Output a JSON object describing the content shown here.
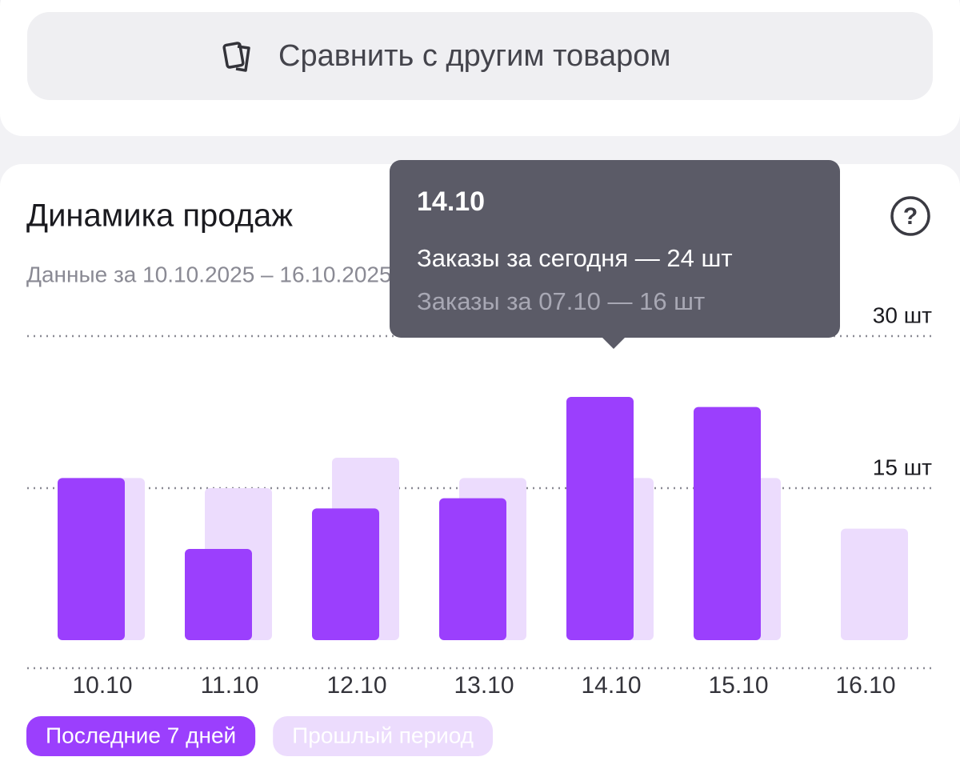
{
  "compare_button": {
    "label": "Сравнить с другим товаром"
  },
  "help_icon": "?",
  "chart_data": {
    "type": "bar",
    "title": "Динамика продаж",
    "subtitle": "Данные за 10.10.2025 – 16.10.2025",
    "categories": [
      "10.10",
      "11.10",
      "12.10",
      "13.10",
      "14.10",
      "15.10",
      "16.10"
    ],
    "series": [
      {
        "name": "Последние 7 дней",
        "color": "#9b3ffd",
        "values": [
          16,
          9,
          13,
          14,
          24,
          23,
          null
        ]
      },
      {
        "name": "Прошлый период",
        "color": "#ecdcfd",
        "values": [
          16,
          15,
          18,
          16,
          16,
          16,
          11
        ]
      }
    ],
    "ylim": [
      0,
      30
    ],
    "yticks": [
      {
        "value": 15,
        "label": "15 шт"
      },
      {
        "value": 30,
        "label": "30 шт"
      }
    ],
    "grid": true,
    "tooltip": {
      "date": "14.10",
      "line1": "Заказы за сегодня — 24 шт",
      "line2": "Заказы за 07.10  — 16 шт"
    }
  }
}
